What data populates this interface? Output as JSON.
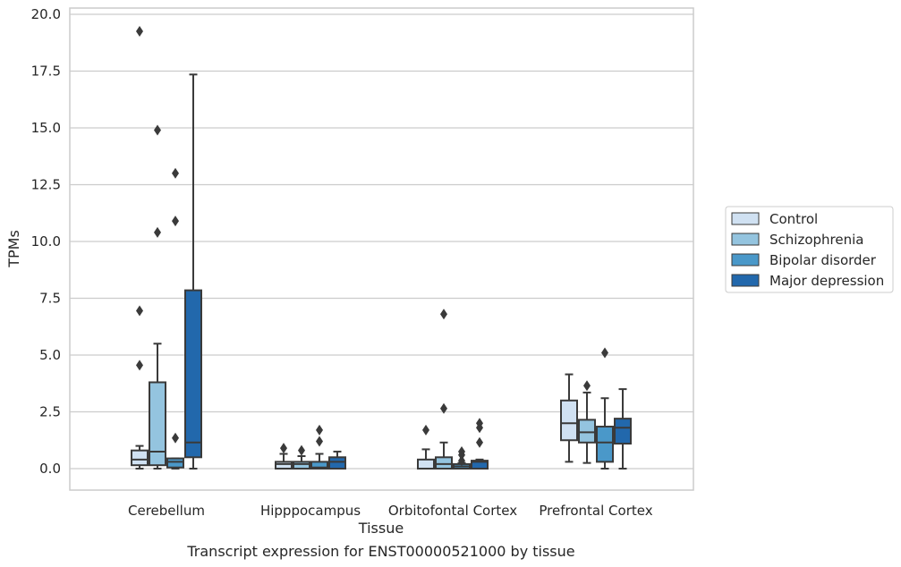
{
  "chart_data": {
    "type": "box",
    "title": "",
    "caption": "Transcript expression for ENST00000521000 by tissue",
    "xlabel": "Tissue",
    "ylabel": "TPMs",
    "ylim": [
      -0.9,
      20.3
    ],
    "yticks": [
      0.0,
      2.5,
      5.0,
      7.5,
      10.0,
      12.5,
      15.0,
      17.5,
      20.0
    ],
    "ytick_labels": [
      "0.0",
      "2.5",
      "5.0",
      "7.5",
      "10.0",
      "12.5",
      "15.0",
      "17.5",
      "20.0"
    ],
    "grid": "horizontal",
    "legend_position": "right, outside plot",
    "categories": [
      "Cerebellum",
      "Hipppocampus",
      "Orbitofontal Cortex",
      "Prefrontal Cortex"
    ],
    "series": [
      {
        "name": "Control",
        "color": "#d0e1f2",
        "boxes": [
          {
            "whislo": 0.0,
            "q1": 0.15,
            "med": 0.4,
            "q3": 0.8,
            "whishi": 1.0,
            "fliers": [
              19.25,
              6.95,
              4.55
            ]
          },
          {
            "whislo": 0.0,
            "q1": 0.0,
            "med": 0.2,
            "q3": 0.3,
            "whishi": 0.65,
            "fliers": [
              0.9
            ]
          },
          {
            "whislo": 0.0,
            "q1": 0.0,
            "med": 0.0,
            "q3": 0.4,
            "whishi": 0.85,
            "fliers": [
              1.7
            ]
          },
          {
            "whislo": 0.3,
            "q1": 1.25,
            "med": 2.0,
            "q3": 3.0,
            "whishi": 4.15,
            "fliers": []
          }
        ]
      },
      {
        "name": "Schizophrenia",
        "color": "#94c4df",
        "boxes": [
          {
            "whislo": 0.0,
            "q1": 0.15,
            "med": 0.75,
            "q3": 3.8,
            "whishi": 5.5,
            "fliers": [
              14.9,
              10.4
            ]
          },
          {
            "whislo": 0.0,
            "q1": 0.0,
            "med": 0.2,
            "q3": 0.3,
            "whishi": 0.55,
            "fliers": [
              0.8
            ]
          },
          {
            "whislo": 0.0,
            "q1": 0.0,
            "med": 0.2,
            "q3": 0.5,
            "whishi": 1.15,
            "fliers": [
              6.8,
              2.65
            ]
          },
          {
            "whislo": 0.25,
            "q1": 1.15,
            "med": 1.6,
            "q3": 2.15,
            "whishi": 3.35,
            "fliers": [
              3.65
            ]
          }
        ]
      },
      {
        "name": "Bipolar disorder",
        "color": "#4a98c9",
        "boxes": [
          {
            "whislo": 0.0,
            "q1": 0.05,
            "med": 0.3,
            "q3": 0.45,
            "whishi": 0.45,
            "fliers": [
              13.0,
              10.9,
              1.35
            ]
          },
          {
            "whislo": 0.0,
            "q1": 0.0,
            "med": 0.05,
            "q3": 0.3,
            "whishi": 0.65,
            "fliers": [
              1.7,
              1.2
            ]
          },
          {
            "whislo": 0.0,
            "q1": 0.0,
            "med": 0.1,
            "q3": 0.2,
            "whishi": 0.25,
            "fliers": [
              0.75,
              0.6,
              0.35
            ]
          },
          {
            "whislo": 0.0,
            "q1": 0.3,
            "med": 1.15,
            "q3": 1.85,
            "whishi": 3.1,
            "fliers": [
              5.1
            ]
          }
        ]
      },
      {
        "name": "Major depression",
        "color": "#2268ac",
        "boxes": [
          {
            "whislo": 0.0,
            "q1": 0.5,
            "med": 1.15,
            "q3": 7.85,
            "whishi": 17.35,
            "fliers": []
          },
          {
            "whislo": 0.0,
            "q1": 0.0,
            "med": 0.3,
            "q3": 0.5,
            "whishi": 0.75,
            "fliers": []
          },
          {
            "whislo": 0.0,
            "q1": 0.0,
            "med": 0.3,
            "q3": 0.35,
            "whishi": 0.4,
            "fliers": [
              2.0,
              1.8,
              1.15
            ]
          },
          {
            "whislo": 0.0,
            "q1": 1.1,
            "med": 1.8,
            "q3": 2.2,
            "whishi": 3.5,
            "fliers": []
          }
        ]
      }
    ]
  }
}
